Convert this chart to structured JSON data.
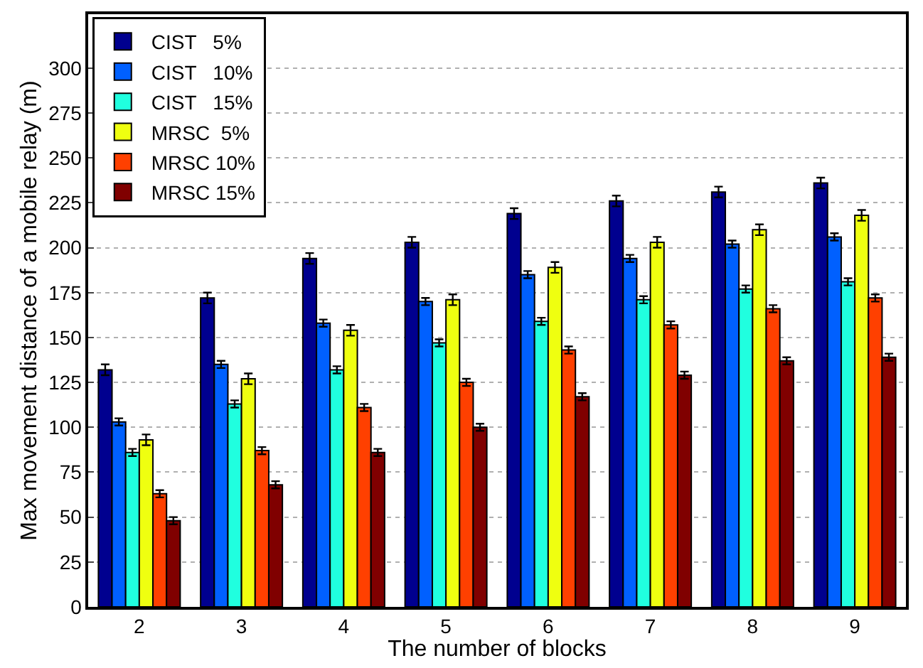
{
  "chart_data": {
    "type": "bar",
    "xlabel": "The number of blocks",
    "ylabel": "Max movement distance of a mobile relay (m)",
    "categories": [
      "2",
      "3",
      "4",
      "5",
      "6",
      "7",
      "8",
      "9"
    ],
    "ylim": [
      0,
      330
    ],
    "yticks": [
      0,
      25,
      50,
      75,
      100,
      125,
      150,
      175,
      200,
      225,
      250,
      275,
      300
    ],
    "grid": "y",
    "legend": "top left",
    "series": [
      {
        "name": "CIST   5%",
        "color": "#00008f",
        "values": [
          132,
          172,
          194,
          203,
          219,
          226,
          231,
          236
        ],
        "errors": [
          3,
          3,
          3,
          3,
          3,
          3,
          3,
          3
        ]
      },
      {
        "name": "CIST   10%",
        "color": "#0060ff",
        "values": [
          103,
          135,
          158,
          170,
          185,
          194,
          202,
          206
        ],
        "errors": [
          2,
          2,
          2,
          2,
          2,
          2,
          2,
          2
        ]
      },
      {
        "name": "CIST   15%",
        "color": "#20ffdf",
        "values": [
          86,
          113,
          132,
          147,
          159,
          171,
          177,
          181
        ],
        "errors": [
          2,
          2,
          2,
          2,
          2,
          2,
          2,
          2
        ]
      },
      {
        "name": "MRSC  5%",
        "color": "#efff10",
        "values": [
          93,
          127,
          154,
          171,
          189,
          203,
          210,
          218
        ],
        "errors": [
          3,
          3,
          3,
          3,
          3,
          3,
          3,
          3
        ]
      },
      {
        "name": "MRSC 10%",
        "color": "#ff4000",
        "values": [
          63,
          87,
          111,
          125,
          143,
          157,
          166,
          172
        ],
        "errors": [
          2,
          2,
          2,
          2,
          2,
          2,
          2,
          2
        ]
      },
      {
        "name": "MRSC 15%",
        "color": "#800000",
        "values": [
          48,
          68,
          86,
          100,
          117,
          129,
          137,
          139
        ],
        "errors": [
          2,
          2,
          2,
          2,
          2,
          2,
          2,
          2
        ]
      }
    ]
  }
}
